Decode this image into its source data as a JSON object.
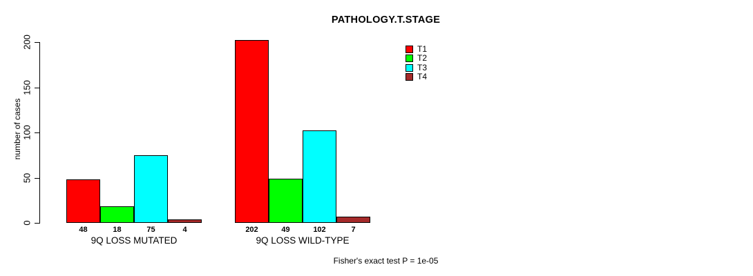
{
  "chart_data": {
    "type": "bar",
    "title": "PATHOLOGY.T.STAGE",
    "ylabel": "number of cases",
    "xlabel": "",
    "ylim": [
      0,
      200
    ],
    "yticks": [
      0,
      50,
      100,
      150,
      200
    ],
    "grid": false,
    "legend_position": "top-right-inside",
    "categories": [
      "9Q LOSS MUTATED",
      "9Q LOSS WILD-TYPE"
    ],
    "series": [
      {
        "name": "T1",
        "color": "#ff0000",
        "values": [
          48,
          202
        ]
      },
      {
        "name": "T2",
        "color": "#00ff00",
        "values": [
          18,
          49
        ]
      },
      {
        "name": "T3",
        "color": "#00ffff",
        "values": [
          75,
          102
        ]
      },
      {
        "name": "T4",
        "color": "#a52a2a",
        "values": [
          4,
          7
        ]
      }
    ],
    "annotation": "Fisher's exact test P = 1e-05",
    "bar_border_color": "#000000",
    "axis_color": "#000000"
  }
}
